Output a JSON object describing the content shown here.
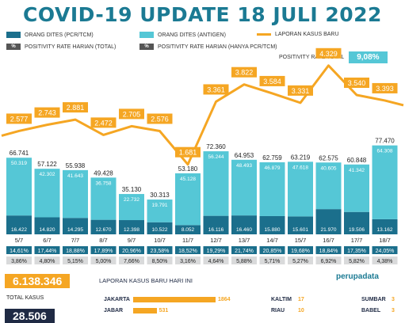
{
  "title": "COVID-19 UPDATE 18 JULI 2022",
  "legend": {
    "pcr": "ORANG DITES (PCR/TCM)",
    "antigen": "ORANG DITES (ANTIGEN)",
    "kasus": "LAPORAN KASUS BARU",
    "pos_total": "POSITIVITY RATE HARIAN (TOTAL)",
    "pos_pcr": "POSITIVITY RATE HARIAN (HANYA PCR/TCM)",
    "pos_rate_total_label": "POSITIVITY RATE TOTAL",
    "pos_rate_total_value": "9,08%",
    "pct_symbol": "%"
  },
  "colors": {
    "pcr": "#1b6f8c",
    "antigen": "#55c7d6",
    "kasus": "#f5a623",
    "title": "#1b7a93",
    "pct_total": "#1b6f8c",
    "pct_pcr": "#d9dadb"
  },
  "chart_data": {
    "type": "bar",
    "categories": [
      "5/7",
      "6/7",
      "7/7",
      "8/7",
      "9/7",
      "10/7",
      "11/7",
      "12/7",
      "13/7",
      "14/7",
      "15/7",
      "16/7",
      "17/7",
      "18/7"
    ],
    "series": [
      {
        "name": "ORANG DITES (PCR/TCM)",
        "values": [
          16422,
          14820,
          14295,
          12670,
          12398,
          10522,
          8052,
          16116,
          16460,
          15880,
          15601,
          21970,
          19506,
          13162
        ]
      },
      {
        "name": "ORANG DITES (ANTIGEN)",
        "values": [
          50319,
          42302,
          41643,
          36758,
          22732,
          19791,
          45128,
          56244,
          48493,
          46879,
          47618,
          40605,
          41342,
          64308
        ]
      },
      {
        "name": "LAPORAN KASUS BARU",
        "values": [
          2577,
          2743,
          2881,
          2472,
          2705,
          2576,
          1681,
          3361,
          3822,
          3584,
          3331,
          4329,
          3540,
          3393
        ]
      },
      {
        "name": "POSITIVITY RATE HARIAN (TOTAL)",
        "values": [
          "14,61%",
          "17,44%",
          "18,88%",
          "17,89%",
          "20,96%",
          "23,58%",
          "18,52%",
          "19,29%",
          "21,74%",
          "20,85%",
          "19,68%",
          "18,84%",
          "17,35%",
          "24,05%"
        ]
      },
      {
        "name": "POSITIVITY RATE HARIAN (HANYA PCR/TCM)",
        "values": [
          "3,86%",
          "4,80%",
          "5,15%",
          "5,00%",
          "7,66%",
          "8,50%",
          "3,16%",
          "4,64%",
          "5,88%",
          "5,71%",
          "5,27%",
          "6,92%",
          "5,82%",
          "4,38%"
        ]
      }
    ],
    "totals": [
      66741,
      57122,
      55938,
      49428,
      35130,
      30313,
      53180,
      72360,
      64953,
      62759,
      63219,
      62575,
      60848,
      77470
    ],
    "totals_labels": [
      "66.741",
      "57.122",
      "55.938",
      "49.428",
      "35.130",
      "30.313",
      "53.180",
      "72.360",
      "64.953",
      "62.759",
      "63.219",
      "62.575",
      "60.848",
      "77.470"
    ],
    "pcr_labels": [
      "16.422",
      "14.820",
      "14.295",
      "12.670",
      "12.398",
      "10.522",
      "8.052",
      "16.116",
      "16.460",
      "15.880",
      "15.601",
      "21.970",
      "19.506",
      "13.162"
    ],
    "antigen_labels": [
      "50.319",
      "42.302",
      "41.643",
      "36.758",
      "22.732",
      "19.791",
      "45.128",
      "56.244",
      "48.493",
      "46.879",
      "47.618",
      "40.605",
      "41.342",
      "64.308"
    ],
    "kasus_labels": [
      "2.577",
      "2.743",
      "2.881",
      "2.472",
      "2.705",
      "2.576",
      "1.681",
      "3.361",
      "3.822",
      "3.584",
      "3.331",
      "4.329",
      "3.540",
      "3.393"
    ]
  },
  "bottom": {
    "total_kasus_value": "6.138.346",
    "total_kasus_label": "TOTAL KASUS",
    "second_value": "28.506",
    "panel_title": "LAPORAN KASUS BARU HARI INI",
    "brand": "perupadata",
    "provinces_left": [
      {
        "name": "JAKARTA",
        "value": 1864
      },
      {
        "name": "JABAR",
        "value": 531
      }
    ],
    "provinces_mid": [
      {
        "name": "KALTIM",
        "value": 17
      },
      {
        "name": "RIAU",
        "value": 10
      }
    ],
    "provinces_right": [
      {
        "name": "SUMBAR",
        "value": 3
      },
      {
        "name": "BABEL",
        "value": 3
      }
    ]
  }
}
